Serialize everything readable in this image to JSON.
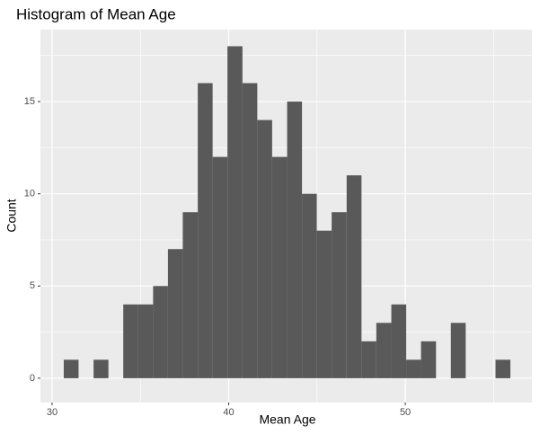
{
  "chart_data": {
    "type": "histogram",
    "title": "Histogram of Mean Age",
    "x_label": "Mean Age",
    "y_label": "Count",
    "bins": [
      30.66,
      31.5,
      32.35,
      33.19,
      34.03,
      34.88,
      35.72,
      36.56,
      37.4,
      38.25,
      39.09,
      39.93,
      40.78,
      41.62,
      42.46,
      43.31,
      44.15,
      44.99,
      45.83,
      46.68,
      47.52,
      48.36,
      49.21,
      50.05,
      50.89,
      51.74,
      52.58,
      53.42,
      54.26,
      55.11,
      55.95
    ],
    "values": [
      1,
      0,
      1,
      0,
      4,
      4,
      5,
      7,
      9,
      16,
      12,
      18,
      16,
      14,
      12,
      15,
      10,
      8,
      9,
      11,
      2,
      3,
      4,
      1,
      2,
      0,
      3,
      0,
      0,
      1
    ],
    "color": "#595959",
    "xlim": [
      29.34,
      57.17
    ],
    "xticks": [
      30,
      40,
      50
    ],
    "ylim": [
      -1.32,
      18.9
    ],
    "yticks": [
      0,
      5,
      10,
      15
    ],
    "grid": true,
    "minor_grid": true
  }
}
